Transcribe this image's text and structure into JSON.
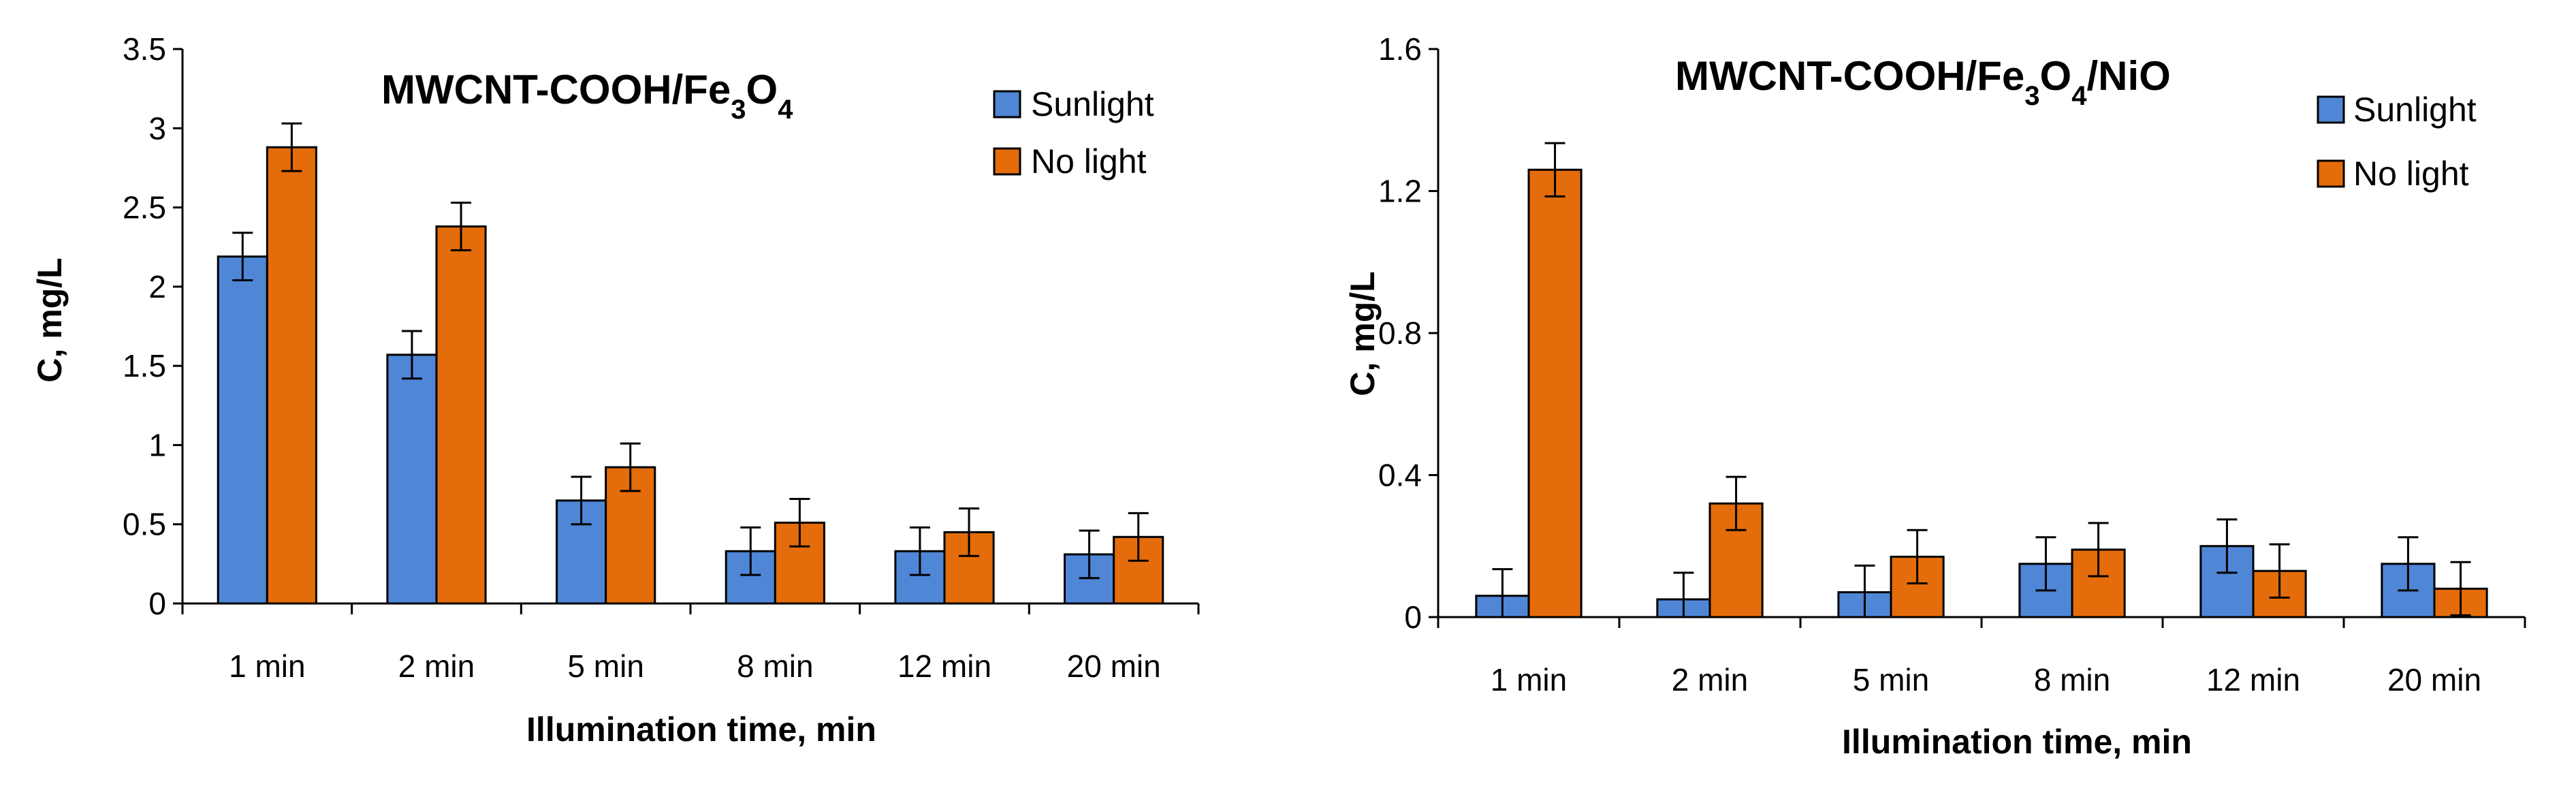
{
  "chart_data": [
    {
      "type": "bar",
      "title": "MWCNT-COOH/Fe",
      "title_sub": "3",
      "title_tail": "O",
      "title_sub2": "4",
      "title_end": "",
      "xlabel": "Illumination time, min",
      "ylabel": "C, mg/L",
      "ylim": [
        0,
        3.5
      ],
      "yticks": [
        0,
        0.5,
        1,
        1.5,
        2,
        2.5,
        3,
        3.5
      ],
      "ytick_labels": [
        "0",
        "0.5",
        "1",
        "1.5",
        "2",
        "2.5",
        "3",
        "3.5"
      ],
      "categories": [
        "1 min",
        "2 min",
        "5 min",
        "8 min",
        "12 min",
        "20 min"
      ],
      "legend_position": "top-right",
      "series": [
        {
          "name": "Sunlight",
          "color": "#4F86D6",
          "values": [
            2.19,
            1.57,
            0.65,
            0.33,
            0.33,
            0.31
          ],
          "errors": [
            0.15,
            0.15,
            0.15,
            0.15,
            0.15,
            0.15
          ]
        },
        {
          "name": "No light",
          "color": "#E46C0A",
          "values": [
            2.88,
            2.38,
            0.86,
            0.51,
            0.45,
            0.42
          ],
          "errors": [
            0.15,
            0.15,
            0.15,
            0.15,
            0.15,
            0.15
          ]
        }
      ]
    },
    {
      "type": "bar",
      "title": "MWCNT-COOH/Fe",
      "title_sub": "3",
      "title_tail": "O",
      "title_sub2": "4",
      "title_end": "/NiO",
      "xlabel": "Illumination time, min",
      "ylabel": "C, mg/L",
      "ylim": [
        0,
        1.6
      ],
      "yticks": [
        0,
        0.4,
        0.8,
        1.2,
        1.6
      ],
      "ytick_labels": [
        "0",
        "0.4",
        "0.8",
        "1.2",
        "1.6"
      ],
      "categories": [
        "1 min",
        "2 min",
        "5 min",
        "8 min",
        "12 min",
        "20 min"
      ],
      "legend_position": "top-right",
      "series": [
        {
          "name": "Sunlight",
          "color": "#4F86D6",
          "values": [
            0.06,
            0.05,
            0.07,
            0.15,
            0.2,
            0.15
          ],
          "errors": [
            0.075,
            0.075,
            0.075,
            0.075,
            0.075,
            0.075
          ]
        },
        {
          "name": "No light",
          "color": "#E46C0A",
          "values": [
            1.26,
            0.32,
            0.17,
            0.19,
            0.13,
            0.08
          ],
          "errors": [
            0.075,
            0.075,
            0.075,
            0.075,
            0.075,
            0.075
          ]
        }
      ]
    }
  ]
}
